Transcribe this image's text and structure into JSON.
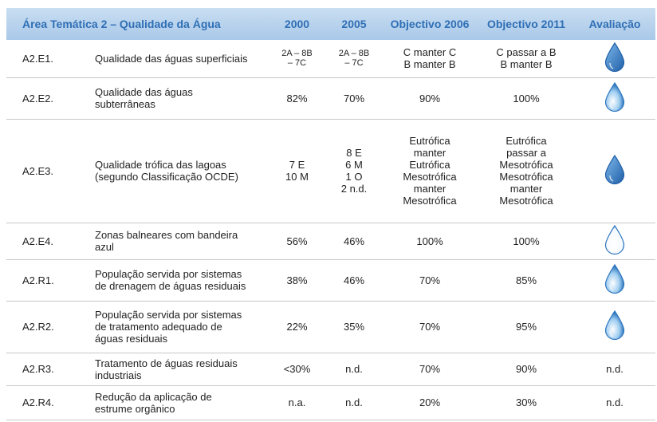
{
  "header": {
    "title": "Área Temática 2 – Qualidade da Água",
    "c2000": "2000",
    "c2005": "2005",
    "obj2006": "Objectivo 2006",
    "obj2011": "Objectivo 2011",
    "avaliacao": "Avaliação"
  },
  "table": {
    "rows": [
      {
        "code": "A2.E1.",
        "indicador": "Qualidade das águas superficiais",
        "v2000": "2A – 8B\n– 7C",
        "v2005": "2A – 8B\n– 7C",
        "obj2006": "C manter C\nB manter B",
        "obj2011": "C passar a B\nB manter B"
      },
      {
        "code": "A2.E2.",
        "indicador": "Qualidade das águas\nsubterrâneas",
        "v2000": "82%",
        "v2005": "70%",
        "obj2006": "90%",
        "obj2011": "100%"
      },
      {
        "code": "A2.E3.",
        "indicador": "Qualidade trófica das lagoas\n(segundo Classificação OCDE)",
        "v2000": "7 E\n10 M",
        "v2005": "8 E\n6 M\n1 O\n2 n.d.",
        "obj2006": "Eutrófica\nmanter\nEutrófica\nMesotrófica\nmanter\nMesotrófica",
        "obj2011": "Eutrófica\npassar a\nMesotrófica\nMesotrófica\nmanter\nMesotrófica"
      },
      {
        "code": "A2.E4.",
        "indicador": "Zonas balneares com bandeira\nazul",
        "v2000": "56%",
        "v2005": "46%",
        "obj2006": "100%",
        "obj2011": "100%"
      },
      {
        "code": "A2.R1.",
        "indicador": "População servida por sistemas\nde drenagem de águas residuais",
        "v2000": "38%",
        "v2005": "46%",
        "obj2006": "70%",
        "obj2011": "85%"
      },
      {
        "code": "A2.R2.",
        "indicador": "População servida por sistemas\nde tratamento adequado de\náguas residuais",
        "v2000": "22%",
        "v2005": "35%",
        "obj2006": "70%",
        "obj2011": "95%"
      },
      {
        "code": "A2.R3.",
        "indicador": "Tratamento de águas residuais\nindustriais",
        "v2000": "<30%",
        "v2005": "n.d.",
        "obj2006": "70%",
        "obj2011": "90%",
        "avaliacao": "n.d."
      },
      {
        "code": "A2.R4.",
        "indicador": "Redução da aplicação de\nestrume orgânico",
        "v2000": "n.a.",
        "v2005": "n.d.",
        "obj2006": "20%",
        "obj2011": "30%",
        "avaliacao": "n.d."
      }
    ]
  }
}
